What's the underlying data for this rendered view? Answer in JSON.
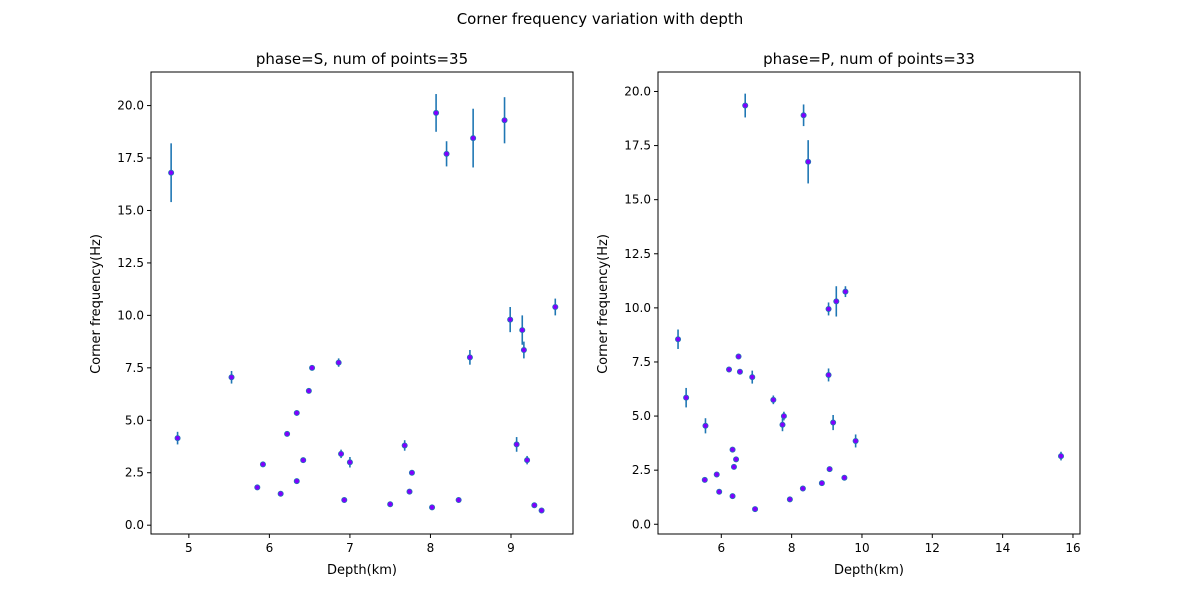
{
  "figure": {
    "suptitle": "Corner frequency variation with depth"
  },
  "colors": {
    "errorbar": "#1f77b4",
    "marker_fill": "#8000ff",
    "marker_edge": "#1f77b4"
  },
  "chart_data": [
    {
      "type": "scatter",
      "title": "phase=S, num of points=35",
      "xlabel": "Depth(km)",
      "ylabel": "Corner frequency(Hz)",
      "xlim": [
        4.53,
        9.77
      ],
      "ylim": [
        -0.42,
        21.6
      ],
      "xticks": [
        5,
        6,
        7,
        8,
        9
      ],
      "xtick_labels": [
        "5",
        "6",
        "7",
        "8",
        "9"
      ],
      "yticks": [
        0,
        2.5,
        5,
        7.5,
        10,
        12.5,
        15,
        17.5,
        20
      ],
      "ytick_labels": [
        "0.0",
        "2.5",
        "5.0",
        "7.5",
        "10.0",
        "12.5",
        "15.0",
        "17.5",
        "20.0"
      ],
      "points": [
        {
          "x": 4.78,
          "y": 16.8,
          "err": 1.4
        },
        {
          "x": 4.86,
          "y": 4.15,
          "err": 0.3
        },
        {
          "x": 5.53,
          "y": 7.05,
          "err": 0.3
        },
        {
          "x": 5.85,
          "y": 1.8,
          "err": 0
        },
        {
          "x": 5.92,
          "y": 2.9,
          "err": 0
        },
        {
          "x": 6.14,
          "y": 1.5,
          "err": 0
        },
        {
          "x": 6.22,
          "y": 4.35,
          "err": 0
        },
        {
          "x": 6.34,
          "y": 5.35,
          "err": 0
        },
        {
          "x": 6.34,
          "y": 2.1,
          "err": 0
        },
        {
          "x": 6.42,
          "y": 3.1,
          "err": 0
        },
        {
          "x": 6.49,
          "y": 6.4,
          "err": 0
        },
        {
          "x": 6.53,
          "y": 7.5,
          "err": 0
        },
        {
          "x": 6.86,
          "y": 7.75,
          "err": 0.2
        },
        {
          "x": 6.89,
          "y": 3.4,
          "err": 0.2
        },
        {
          "x": 6.93,
          "y": 1.2,
          "err": 0
        },
        {
          "x": 7.0,
          "y": 3.0,
          "err": 0.25
        },
        {
          "x": 7.5,
          "y": 1.0,
          "err": 0
        },
        {
          "x": 7.68,
          "y": 3.8,
          "err": 0.25
        },
        {
          "x": 7.74,
          "y": 1.6,
          "err": 0
        },
        {
          "x": 7.77,
          "y": 2.5,
          "err": 0
        },
        {
          "x": 8.02,
          "y": 0.85,
          "err": 0
        },
        {
          "x": 8.07,
          "y": 19.65,
          "err": 0.9
        },
        {
          "x": 8.2,
          "y": 17.7,
          "err": 0.6
        },
        {
          "x": 8.35,
          "y": 1.2,
          "err": 0
        },
        {
          "x": 8.49,
          "y": 8.0,
          "err": 0.35
        },
        {
          "x": 8.53,
          "y": 18.45,
          "err": 1.4
        },
        {
          "x": 8.92,
          "y": 19.3,
          "err": 1.1
        },
        {
          "x": 8.99,
          "y": 9.8,
          "err": 0.6
        },
        {
          "x": 9.07,
          "y": 3.85,
          "err": 0.35
        },
        {
          "x": 9.14,
          "y": 9.3,
          "err": 0.7
        },
        {
          "x": 9.16,
          "y": 8.35,
          "err": 0.4
        },
        {
          "x": 9.2,
          "y": 3.1,
          "err": 0.2
        },
        {
          "x": 9.29,
          "y": 0.95,
          "err": 0
        },
        {
          "x": 9.38,
          "y": 0.7,
          "err": 0
        },
        {
          "x": 9.55,
          "y": 10.4,
          "err": 0.4
        }
      ]
    },
    {
      "type": "scatter",
      "title": "phase=P, num of points=33",
      "xlabel": "Depth(km)",
      "ylabel": "Corner frequency(Hz)",
      "xlim": [
        4.2,
        16.2
      ],
      "ylim": [
        -0.45,
        20.9
      ],
      "xticks": [
        6,
        8,
        10,
        12,
        14,
        16
      ],
      "xtick_labels": [
        "6",
        "8",
        "10",
        "12",
        "14",
        "16"
      ],
      "yticks": [
        0,
        2.5,
        5,
        7.5,
        10,
        12.5,
        15,
        17.5,
        20
      ],
      "ytick_labels": [
        "0.0",
        "2.5",
        "5.0",
        "7.5",
        "10.0",
        "12.5",
        "15.0",
        "17.5",
        "20.0"
      ],
      "points": [
        {
          "x": 4.77,
          "y": 8.55,
          "err": 0.45
        },
        {
          "x": 5.0,
          "y": 5.85,
          "err": 0.45
        },
        {
          "x": 5.53,
          "y": 2.05,
          "err": 0
        },
        {
          "x": 5.55,
          "y": 4.55,
          "err": 0.35
        },
        {
          "x": 5.87,
          "y": 2.3,
          "err": 0
        },
        {
          "x": 5.94,
          "y": 1.5,
          "err": 0
        },
        {
          "x": 6.22,
          "y": 7.15,
          "err": 0
        },
        {
          "x": 6.32,
          "y": 3.45,
          "err": 0
        },
        {
          "x": 6.32,
          "y": 1.3,
          "err": 0
        },
        {
          "x": 6.36,
          "y": 2.65,
          "err": 0
        },
        {
          "x": 6.42,
          "y": 3.0,
          "err": 0
        },
        {
          "x": 6.49,
          "y": 7.75,
          "err": 0
        },
        {
          "x": 6.53,
          "y": 7.05,
          "err": 0
        },
        {
          "x": 6.68,
          "y": 19.35,
          "err": 0.55
        },
        {
          "x": 6.88,
          "y": 6.8,
          "err": 0.3
        },
        {
          "x": 6.96,
          "y": 0.7,
          "err": 0
        },
        {
          "x": 7.95,
          "y": 1.15,
          "err": 0
        },
        {
          "x": 7.48,
          "y": 5.75,
          "err": 0.2
        },
        {
          "x": 7.74,
          "y": 4.6,
          "err": 0.3
        },
        {
          "x": 7.78,
          "y": 5.0,
          "err": 0.2
        },
        {
          "x": 8.32,
          "y": 1.65,
          "err": 0
        },
        {
          "x": 8.34,
          "y": 18.9,
          "err": 0.5
        },
        {
          "x": 8.47,
          "y": 16.75,
          "err": 1.0
        },
        {
          "x": 8.86,
          "y": 1.9,
          "err": 0
        },
        {
          "x": 9.05,
          "y": 9.95,
          "err": 0.3
        },
        {
          "x": 9.05,
          "y": 6.9,
          "err": 0.3
        },
        {
          "x": 9.08,
          "y": 2.55,
          "err": 0
        },
        {
          "x": 9.18,
          "y": 4.7,
          "err": 0.35
        },
        {
          "x": 9.27,
          "y": 10.3,
          "err": 0.7
        },
        {
          "x": 9.5,
          "y": 2.15,
          "err": 0
        },
        {
          "x": 9.53,
          "y": 10.75,
          "err": 0.25
        },
        {
          "x": 9.82,
          "y": 3.85,
          "err": 0.3
        },
        {
          "x": 15.66,
          "y": 3.15,
          "err": 0.2
        }
      ]
    }
  ]
}
